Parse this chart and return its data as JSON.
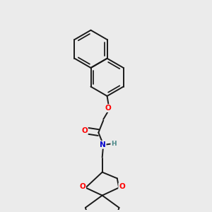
{
  "background_color": "#ebebeb",
  "bond_color": "#1a1a1a",
  "atom_colors": {
    "O": "#ff0000",
    "N": "#0000cd",
    "H": "#4a8888",
    "C": "#1a1a1a"
  },
  "bond_width": 1.4,
  "figsize": [
    3.0,
    3.0
  ],
  "dpi": 100
}
